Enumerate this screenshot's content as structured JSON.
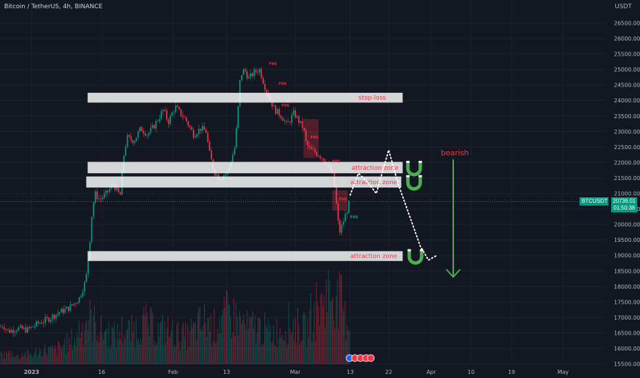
{
  "header": {
    "symbol_title": "Bitcoin / TetherUS, 4h, BINANCE",
    "axis_unit": "USDT"
  },
  "price_label": {
    "symbol": "BTCUSDT",
    "price": "20736.01",
    "countdown": "01:50:38"
  },
  "annotations": {
    "zones": [
      {
        "label": "stop-loss",
        "low": 23940,
        "high": 24240
      },
      {
        "label": "attraction zone",
        "low": 21660,
        "high": 22010
      },
      {
        "label": "attraction zone",
        "low": 21200,
        "high": 21540
      },
      {
        "label": "attraction zone",
        "low": 18830,
        "high": 19130
      }
    ],
    "bearish_label": "bearish",
    "fvg_label": "FVG"
  },
  "colors": {
    "background": "#131722",
    "grid": "#1e222d",
    "up": "#089981",
    "down": "#f23645",
    "zone_label": "#f23645",
    "arrow": "#4caf50",
    "magnet": "#4caf50",
    "price_box": "#089981"
  },
  "chart_data": {
    "type": "candlestick",
    "title": "Bitcoin / TetherUS, 4h, BINANCE",
    "y_unit": "USDT",
    "ylim": [
      15500,
      26800
    ],
    "y_ticks": [
      15500,
      16000,
      16500,
      17000,
      17500,
      18000,
      18500,
      19000,
      19500,
      20000,
      20500,
      21000,
      21500,
      22000,
      22500,
      23000,
      23500,
      24000,
      24500,
      25000,
      25500,
      26000,
      26500
    ],
    "x_ticks": [
      "2023",
      "16",
      "Feb",
      "13",
      "Mar",
      "13",
      "22",
      "Apr",
      "10",
      "19",
      "May"
    ],
    "grid": true,
    "last_price": 20736.01,
    "price_path": [
      [
        0,
        16700
      ],
      [
        5,
        16750
      ],
      [
        12,
        16550
      ],
      [
        25,
        16650
      ],
      [
        40,
        16600
      ],
      [
        55,
        16800
      ],
      [
        70,
        16950
      ],
      [
        85,
        17150
      ],
      [
        100,
        17300
      ],
      [
        115,
        17600
      ],
      [
        125,
        18200
      ],
      [
        130,
        19200
      ],
      [
        133,
        20200
      ],
      [
        138,
        21000
      ],
      [
        145,
        20800
      ],
      [
        155,
        21000
      ],
      [
        165,
        21300
      ],
      [
        175,
        20900
      ],
      [
        180,
        22200
      ],
      [
        185,
        22800
      ],
      [
        195,
        22700
      ],
      [
        205,
        23100
      ],
      [
        215,
        22900
      ],
      [
        225,
        23200
      ],
      [
        238,
        23700
      ],
      [
        245,
        23300
      ],
      [
        255,
        23800
      ],
      [
        262,
        23600
      ],
      [
        270,
        23400
      ],
      [
        282,
        22900
      ],
      [
        292,
        23100
      ],
      [
        300,
        23000
      ],
      [
        305,
        22300
      ],
      [
        312,
        21700
      ],
      [
        320,
        21500
      ],
      [
        332,
        21700
      ],
      [
        342,
        22500
      ],
      [
        346,
        23500
      ],
      [
        350,
        24800
      ],
      [
        356,
        25000
      ],
      [
        362,
        24700
      ],
      [
        370,
        24900
      ],
      [
        378,
        25000
      ],
      [
        385,
        24500
      ],
      [
        392,
        24100
      ],
      [
        400,
        23700
      ],
      [
        410,
        23500
      ],
      [
        418,
        23200
      ],
      [
        428,
        23600
      ],
      [
        436,
        23300
      ],
      [
        442,
        23100
      ],
      [
        446,
        22600
      ],
      [
        452,
        22400
      ],
      [
        462,
        22300
      ],
      [
        472,
        22100
      ],
      [
        480,
        21800
      ],
      [
        486,
        21500
      ],
      [
        490,
        20600
      ],
      [
        494,
        19700
      ],
      [
        500,
        20100
      ],
      [
        506,
        20500
      ],
      [
        509,
        20736
      ]
    ],
    "volume_profile": [
      0.12,
      0.14,
      0.1,
      0.13,
      0.12,
      0.16,
      0.18,
      0.17,
      0.2,
      0.25,
      0.3,
      0.45,
      0.55,
      0.5,
      0.4,
      0.38,
      0.35,
      0.42,
      0.4,
      0.44,
      0.5,
      0.46,
      0.4,
      0.42,
      0.38,
      0.36,
      0.34,
      0.4,
      0.48,
      0.52,
      0.45,
      0.55,
      0.6,
      0.58,
      0.5,
      0.44,
      0.46,
      0.42,
      0.38,
      0.4,
      0.44,
      0.5,
      0.46,
      0.42,
      0.58,
      0.7,
      0.85,
      0.9,
      0.75,
      0.55
    ],
    "projection_path": [
      [
        510,
        20950
      ],
      [
        522,
        21650
      ],
      [
        536,
        21350
      ],
      [
        548,
        21000
      ],
      [
        566,
        22400
      ],
      [
        580,
        21300
      ],
      [
        596,
        20300
      ],
      [
        612,
        19300
      ],
      [
        624,
        18850
      ],
      [
        636,
        19000
      ]
    ]
  }
}
